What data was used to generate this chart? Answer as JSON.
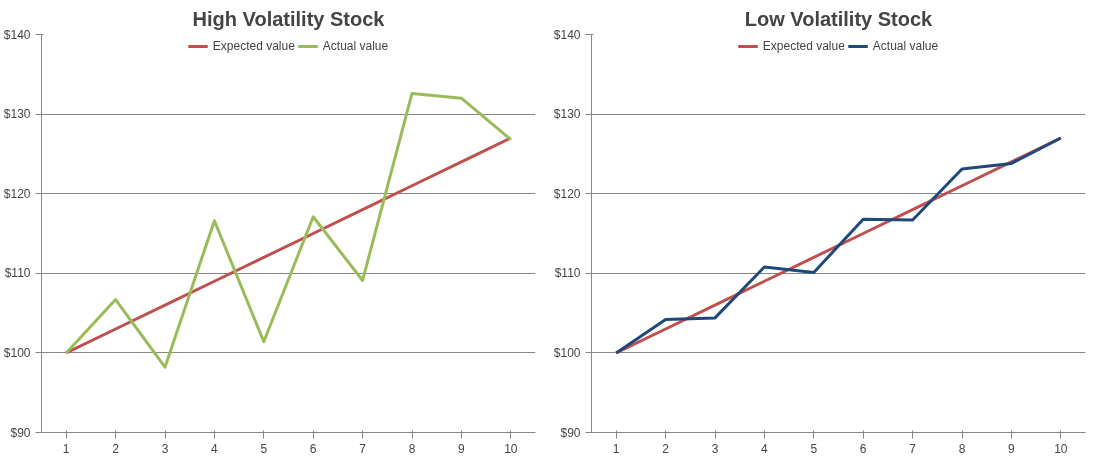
{
  "chart_data": [
    {
      "type": "line",
      "title": "High Volatility Stock",
      "categories": [
        "1",
        "2",
        "3",
        "4",
        "5",
        "6",
        "7",
        "8",
        "9",
        "10"
      ],
      "series": [
        {
          "name": "Expected value",
          "color": "#c0504d",
          "values": [
            100,
            103,
            106,
            109,
            112,
            115,
            118,
            121,
            124,
            127
          ]
        },
        {
          "name": "Actual value",
          "color": "#9bbb59",
          "values": [
            100,
            106.7,
            98.2,
            116.6,
            101.4,
            117.1,
            109.1,
            132.6,
            132,
            126.8
          ]
        }
      ],
      "ylim": [
        90,
        140
      ],
      "yticks": [
        {
          "value": 90,
          "label": "$90"
        },
        {
          "value": 100,
          "label": "$100"
        },
        {
          "value": 110,
          "label": "$110"
        },
        {
          "value": 120,
          "label": "$120"
        },
        {
          "value": 130,
          "label": "$130"
        },
        {
          "value": 140,
          "label": "$140"
        }
      ],
      "grid": "y",
      "legend": "top",
      "marker": "none",
      "line_style": "solid"
    },
    {
      "type": "line",
      "title": "Low Volatility Stock",
      "categories": [
        "1",
        "2",
        "3",
        "4",
        "5",
        "6",
        "7",
        "8",
        "9",
        "10"
      ],
      "series": [
        {
          "name": "Expected value",
          "color": "#c0504d",
          "values": [
            100,
            103,
            106,
            109,
            112,
            115,
            118,
            121,
            124,
            127
          ]
        },
        {
          "name": "Actual value",
          "color": "#1f497d",
          "values": [
            100,
            104.2,
            104.4,
            110.8,
            110.1,
            116.8,
            116.7,
            123.1,
            123.8,
            127
          ]
        }
      ],
      "ylim": [
        90,
        140
      ],
      "yticks": [
        {
          "value": 90,
          "label": "$90"
        },
        {
          "value": 100,
          "label": "$100"
        },
        {
          "value": 110,
          "label": "$110"
        },
        {
          "value": 120,
          "label": "$120"
        },
        {
          "value": 130,
          "label": "$130"
        },
        {
          "value": 140,
          "label": "$140"
        }
      ],
      "grid": "y",
      "legend": "top",
      "marker": "none",
      "line_style": "solid"
    }
  ]
}
